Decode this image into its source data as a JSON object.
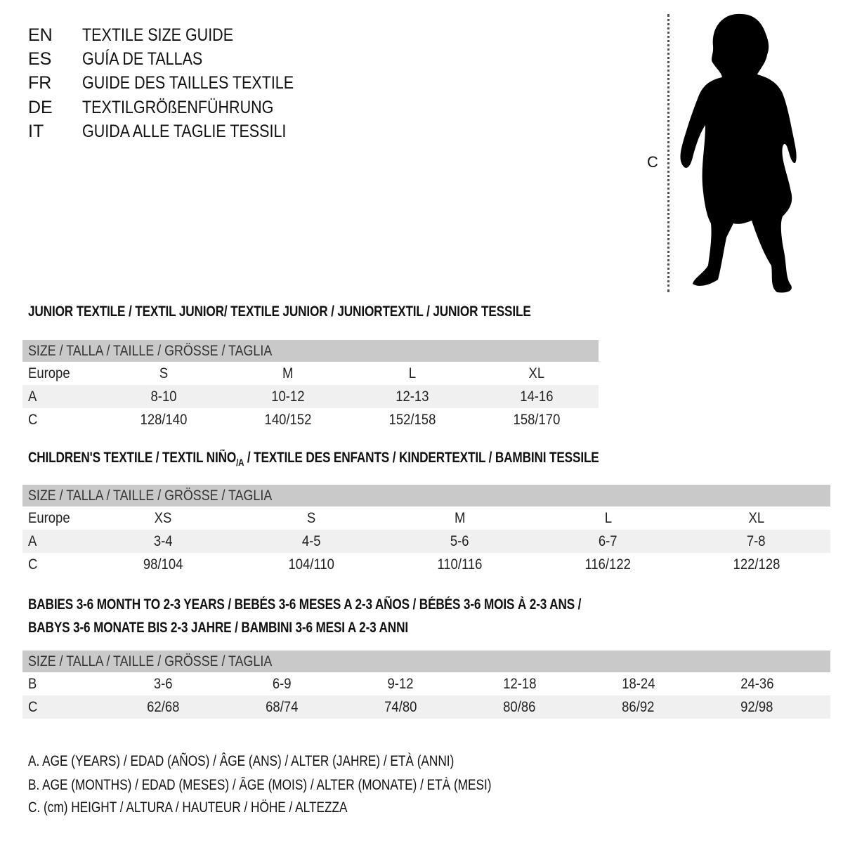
{
  "title_lines": [
    {
      "code": "EN",
      "text": "TEXTILE SIZE GUIDE"
    },
    {
      "code": "ES",
      "text": "GUÍA DE TALLAS"
    },
    {
      "code": "FR",
      "text": "GUIDE DES TAILLES TEXTILE"
    },
    {
      "code": "DE",
      "text": "TEXTILGRÖßENFÜHRUNG"
    },
    {
      "code": "IT",
      "text": "GUIDA ALLE TAGLIE TESSILI"
    }
  ],
  "figure": {
    "measure_label": "C"
  },
  "junior": {
    "heading": "JUNIOR TEXTILE / TEXTIL JUNIOR/ TEXTILE JUNIOR / JUNIORTEXTIL / JUNIOR TESSILE",
    "header": "SIZE / TALLA / TAILLE / GRÖSSE / TAGLIA",
    "rows": [
      {
        "label": "Europe",
        "cells": [
          "S",
          "M",
          "L",
          "XL"
        ]
      },
      {
        "label": "A",
        "cells": [
          "8-10",
          "10-12",
          "12-13",
          "14-16"
        ]
      },
      {
        "label": "C",
        "cells": [
          "128/140",
          "140/152",
          "152/158",
          "158/170"
        ]
      }
    ]
  },
  "children": {
    "heading_pre": "CHILDREN'S TEXTILE / TEXTIL NIÑO",
    "heading_sub": "/A",
    "heading_post": " / TEXTILE DES ENFANTS / KINDERTEXTIL / BAMBINI TESSILE",
    "header": "SIZE / TALLA / TAILLE / GRÖSSE / TAGLIA",
    "rows": [
      {
        "label": "Europe",
        "cells": [
          "XS",
          "S",
          "M",
          "L",
          "XL"
        ]
      },
      {
        "label": "A",
        "cells": [
          "3-4",
          "4-5",
          "5-6",
          "6-7",
          "7-8"
        ]
      },
      {
        "label": "C",
        "cells": [
          "98/104",
          "104/110",
          "110/116",
          "116/122",
          "122/128"
        ]
      }
    ]
  },
  "babies": {
    "heading_line1": "BABIES 3-6 MONTH TO 2-3 YEARS / BEBÉS 3-6 MESES A 2-3 AÑOS / BÉBÉS 3-6 MOIS À 2-3 ANS /",
    "heading_line2": "BABYS 3-6 MONATE BIS 2-3 JAHRE / BAMBINI 3-6 MESI A 2-3 ANNI",
    "header": "SIZE / TALLA / TAILLE / GRÖSSE / TAGLIA",
    "rows": [
      {
        "label": "B",
        "cells": [
          "3-6",
          "6-9",
          "9-12",
          "12-18",
          "18-24",
          "24-36"
        ]
      },
      {
        "label": "C",
        "cells": [
          "62/68",
          "68/74",
          "74/80",
          "80/86",
          "86/92",
          "92/98"
        ]
      }
    ]
  },
  "legend": [
    "A. AGE (YEARS) / EDAD (AÑOS) / ÂGE (ANS) / ALTER (JAHRE) / ETÀ (ANNI)",
    "B. AGE (MONTHS) / EDAD (MESES) / ÂGE (MOIS) / ALTER (MONATE) / ETÀ (MESI)",
    "C. (cm) HEIGHT / ALTURA / HAUTEUR / HÖHE / ALTEZZA"
  ],
  "colors": {
    "header_bg": "#c9c9c9",
    "alt_row_bg": "#f0f0f0",
    "text": "#111111"
  }
}
